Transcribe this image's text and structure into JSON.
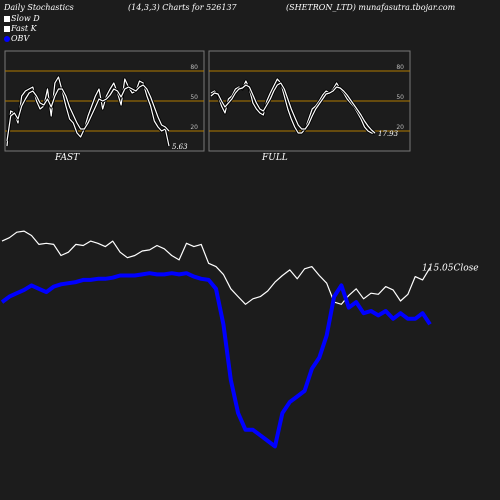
{
  "header": {
    "left": "Daily Stochastics",
    "params": "(14,3,3) Charts for 526137",
    "right": "(SHETRON_LTD) munafasutra.tbojar.com"
  },
  "legend": [
    {
      "label": "Slow  D",
      "color": "#ffffff"
    },
    {
      "label": "Fast  K",
      "color": "#ffffff"
    },
    {
      "label": "OBV",
      "color": "#0000ff"
    }
  ],
  "colors": {
    "background": "#1c1c1c",
    "price": "#ffffff",
    "obv": "#0000ff",
    "levels": "#b07a00",
    "panel_border": "#777777"
  },
  "chart_data": [
    {
      "type": "line",
      "title": "FAST",
      "yticks": [
        20,
        50,
        80
      ],
      "ylim": [
        0,
        100
      ],
      "end_value_label": "5.63",
      "series": [
        {
          "name": "Fast  K",
          "values": [
            5,
            40,
            38,
            28,
            55,
            60,
            62,
            64,
            50,
            42,
            45,
            62,
            35,
            68,
            74,
            60,
            45,
            32,
            28,
            18,
            14,
            22,
            35,
            45,
            55,
            62,
            42,
            55,
            62,
            68,
            58,
            46,
            72,
            64,
            58,
            60,
            70,
            68,
            55,
            45,
            30,
            24,
            20,
            22,
            5
          ]
        },
        {
          "name": "Slow  D",
          "values": [
            10,
            35,
            38,
            32,
            45,
            52,
            58,
            60,
            55,
            48,
            46,
            52,
            44,
            55,
            62,
            62,
            55,
            44,
            36,
            28,
            22,
            22,
            28,
            36,
            44,
            52,
            50,
            52,
            56,
            62,
            60,
            54,
            62,
            64,
            62,
            60,
            64,
            66,
            62,
            54,
            44,
            34,
            26,
            24,
            20
          ]
        }
      ]
    },
    {
      "type": "line",
      "title": "FULL",
      "yticks": [
        20,
        50,
        80
      ],
      "ylim": [
        0,
        100
      ],
      "end_value_label": "17.93",
      "series": [
        {
          "name": "Fast  K",
          "values": [
            58,
            60,
            56,
            45,
            38,
            52,
            55,
            62,
            64,
            62,
            70,
            62,
            48,
            42,
            38,
            36,
            50,
            58,
            65,
            72,
            68,
            55,
            42,
            32,
            24,
            18,
            18,
            22,
            32,
            42,
            45,
            50,
            56,
            60,
            58,
            62,
            68,
            62,
            58,
            52,
            48,
            44,
            38,
            32,
            24,
            20,
            18,
            18
          ]
        },
        {
          "name": "Slow  D",
          "values": [
            55,
            58,
            57,
            50,
            44,
            48,
            52,
            58,
            62,
            63,
            66,
            64,
            56,
            48,
            42,
            40,
            46,
            52,
            60,
            66,
            68,
            62,
            52,
            42,
            34,
            26,
            22,
            22,
            27,
            35,
            42,
            47,
            52,
            57,
            58,
            60,
            64,
            63,
            60,
            56,
            51,
            46,
            41,
            36,
            30,
            25,
            21,
            18
          ]
        }
      ]
    },
    {
      "type": "line",
      "end_value_label": "115.05",
      "end_value_suffix": "Close",
      "series": [
        {
          "name": "Close",
          "values": [
            55,
            52,
            47,
            46,
            50,
            58,
            57,
            58,
            68,
            65,
            58,
            59,
            55,
            57,
            60,
            55,
            65,
            70,
            68,
            64,
            63,
            59,
            62,
            68,
            72,
            57,
            60,
            58,
            75,
            78,
            85,
            98,
            105,
            112,
            107,
            105,
            100,
            92,
            86,
            81,
            89,
            80,
            78,
            86,
            93,
            110,
            112,
            104,
            98,
            107,
            102,
            103,
            96,
            99,
            109,
            103,
            87,
            90,
            79
          ]
        },
        {
          "name": "OBV",
          "values": [
            110,
            105,
            102,
            99,
            95,
            98,
            101,
            96,
            94,
            93,
            92,
            90,
            90,
            89,
            89,
            88,
            86,
            86,
            86,
            85,
            84,
            85,
            85,
            84,
            85,
            84,
            87,
            89,
            90,
            98,
            130,
            180,
            210,
            225,
            225,
            230,
            235,
            240,
            210,
            200,
            195,
            190,
            170,
            160,
            140,
            105,
            95,
            115,
            110,
            120,
            118,
            122,
            118,
            125,
            120,
            125,
            125,
            120,
            130
          ]
        }
      ]
    }
  ]
}
